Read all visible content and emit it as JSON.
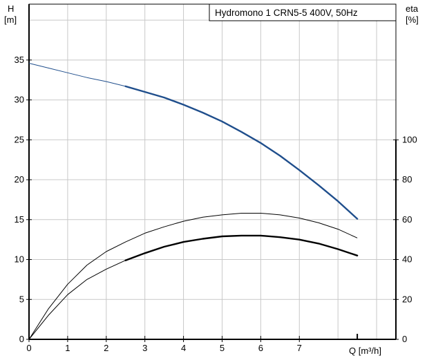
{
  "chart_data": {
    "type": "line",
    "title": "Hydromono 1 CRN5-5 400V, 50Hz",
    "xlabel": "Q [m³/h]",
    "ylabel_left_top": "H",
    "ylabel_left_unit": "[m]",
    "ylabel_right_top": "eta",
    "ylabel_right_unit": "[%]",
    "x_ticks": [
      "0",
      "1",
      "2",
      "3",
      "4",
      "5",
      "6",
      "7"
    ],
    "y_left_ticks": [
      "0",
      "5",
      "10",
      "15",
      "20",
      "25",
      "30",
      "35"
    ],
    "y_right_ticks": [
      "0",
      "20",
      "40",
      "60",
      "80",
      "100"
    ],
    "xlim": [
      0,
      9.5
    ],
    "ylim_left": [
      0,
      42
    ],
    "ylim_right": [
      0,
      168
    ],
    "grid": true,
    "colors": {
      "head_curve": "#1f4e8c",
      "eta_curves": "#000000",
      "grid": "#c8c8c8"
    },
    "series": [
      {
        "axis": "left",
        "x": [
          0,
          0.5,
          1,
          1.5,
          2,
          2.5,
          3,
          3.5,
          4,
          4.5,
          5,
          5.5,
          6,
          6.5,
          7,
          7.5,
          8,
          8.5
        ],
        "y": [
          34.6,
          34.0,
          33.4,
          32.8,
          32.3,
          31.7,
          31.0,
          30.3,
          29.4,
          28.4,
          27.3,
          26.0,
          24.6,
          23.0,
          21.2,
          19.3,
          17.3,
          15.1
        ],
        "bold_from": 2.5
      },
      {
        "axis": "left",
        "x": [
          0,
          0.5,
          1,
          1.5,
          2,
          2.5,
          3,
          3.5,
          4,
          4.5,
          5,
          5.5,
          6,
          6.5,
          7,
          7.5,
          8,
          8.5
        ],
        "y": [
          0,
          3.8,
          6.9,
          9.3,
          11.0,
          12.2,
          13.3,
          14.1,
          14.8,
          15.3,
          15.6,
          15.8,
          15.8,
          15.6,
          15.2,
          14.6,
          13.8,
          12.7
        ]
      },
      {
        "axis": "left",
        "x": [
          0,
          0.5,
          1,
          1.5,
          2,
          2.5,
          3,
          3.5,
          4,
          4.5,
          5,
          5.5,
          6,
          6.5,
          7,
          7.5,
          8,
          8.5
        ],
        "y": [
          0,
          3.0,
          5.6,
          7.5,
          8.8,
          9.9,
          10.8,
          11.6,
          12.2,
          12.6,
          12.9,
          13.0,
          13.0,
          12.8,
          12.5,
          12.0,
          11.3,
          10.5
        ],
        "bold_from": 2.5
      }
    ]
  }
}
